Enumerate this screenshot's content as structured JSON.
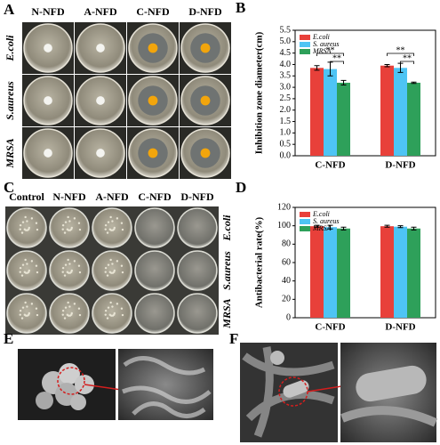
{
  "panels": {
    "A": {
      "label": "A",
      "columns": [
        "N-NFD",
        "A-NFD",
        "C-NFD",
        "D-NFD"
      ],
      "rows": [
        "E.coli",
        "S.aureus",
        "MRSA"
      ]
    },
    "C": {
      "label": "C",
      "columns": [
        "Control",
        "N-NFD",
        "A-NFD",
        "C-NFD",
        "D-NFD"
      ],
      "rows": [
        "E.coli",
        "S.aureus",
        "MRSA"
      ]
    },
    "E": {
      "label": "E"
    },
    "F": {
      "label": "F"
    }
  },
  "chart_data": [
    {
      "type": "bar",
      "panel_label": "B",
      "y_label": "Inhibition zone diameter(cm)",
      "categories": [
        "C-NFD",
        "D-NFD"
      ],
      "series": [
        {
          "name": "E.coli",
          "color": "#e8403a",
          "values": [
            3.85,
            3.95
          ],
          "errors": [
            0.1,
            0.05
          ]
        },
        {
          "name": "S. aureus",
          "color": "#4ec4f4",
          "values": [
            3.8,
            3.85
          ],
          "errors": [
            0.3,
            0.2
          ]
        },
        {
          "name": "MRSA",
          "color": "#2ea05a",
          "values": [
            3.2,
            3.2
          ],
          "errors": [
            0.1,
            0.03
          ]
        }
      ],
      "ylim": [
        0,
        5.5
      ],
      "yticks": [
        {
          "value": 0,
          "label": "0.0"
        },
        0.5,
        {
          "value": 1,
          "label": "1.0"
        },
        1.5,
        {
          "value": 2,
          "label": "2.0"
        },
        2.5,
        {
          "value": 3,
          "label": "3.0"
        },
        3.5,
        {
          "value": 4,
          "label": "4.0"
        },
        4.5,
        {
          "value": 5,
          "label": "5.0"
        },
        5.5
      ],
      "annotations": [
        "**",
        "**",
        "**",
        "**"
      ],
      "legend": "upper left"
    },
    {
      "type": "bar",
      "panel_label": "D",
      "y_label": "Antibacterial rate(%)",
      "categories": [
        "C-NFD",
        "D-NFD"
      ],
      "series": [
        {
          "name": "E.coli",
          "color": "#e8403a",
          "values": [
            99.5,
            99.5
          ],
          "errors": [
            1,
            1
          ]
        },
        {
          "name": "S. aureus",
          "color": "#4ec4f4",
          "values": [
            98.5,
            99
          ],
          "errors": [
            2,
            1
          ]
        },
        {
          "name": "MRSA",
          "color": "#2ea05a",
          "values": [
            97,
            97
          ],
          "errors": [
            1.5,
            1.5
          ]
        }
      ],
      "ylim": [
        0,
        120
      ],
      "yticks": [
        0,
        20,
        40,
        60,
        80,
        100,
        120
      ],
      "legend": "upper left"
    }
  ]
}
